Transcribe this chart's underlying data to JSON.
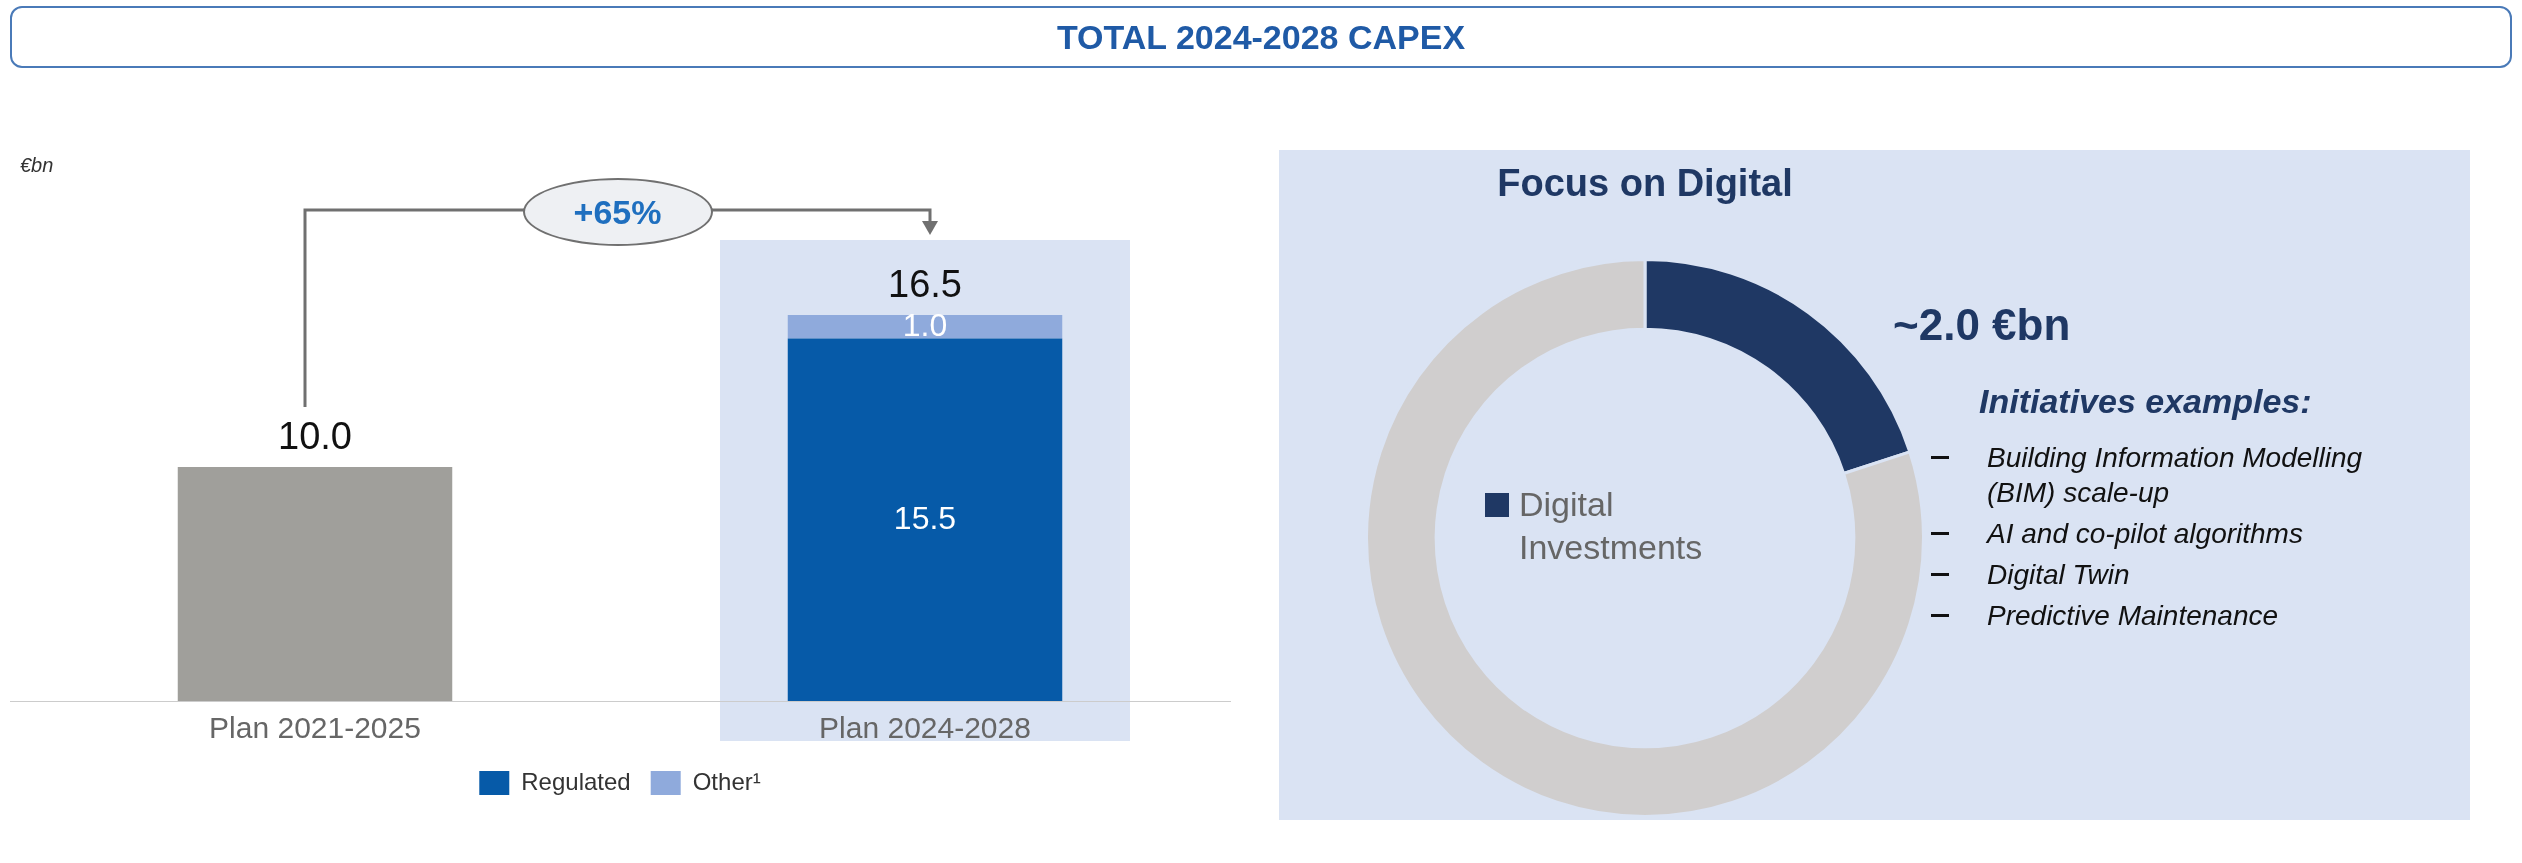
{
  "chart_data": [
    {
      "type": "bar",
      "title": "TOTAL 2024-2028 CAPEX",
      "ylabel": "€bn",
      "categories": [
        "Plan 2021-2025",
        "Plan 2024-2028"
      ],
      "stacked": true,
      "legend": "bottom",
      "series": [
        {
          "color": "#a09f9b",
          "values": [
            10.0,
            null
          ]
        },
        {
          "name": "Regulated",
          "color": "#065aa8",
          "values": [
            null,
            15.5
          ],
          "value_labels": [
            null,
            "15.5"
          ]
        },
        {
          "name": "Other¹",
          "color": "#8faadc",
          "values": [
            null,
            1.0
          ],
          "value_labels": [
            null,
            "1.0"
          ]
        }
      ],
      "totals": [
        "10.0",
        "16.5"
      ],
      "annotations": [
        "+65%"
      ]
    },
    {
      "type": "donut",
      "title": "Focus on Digital",
      "categories": [
        "Digital Investments",
        null
      ],
      "values": [
        20,
        80
      ],
      "colors": [
        "#1f3864",
        "#d0cece"
      ],
      "legend": "center",
      "annotations": [
        "~2.0 €bn",
        "Initiatives examples:",
        "Building Information Modelling (BIM) scale-up",
        "AI and co-pilot algorithms",
        "Digital Twin",
        "Predictive Maintenance"
      ]
    }
  ]
}
